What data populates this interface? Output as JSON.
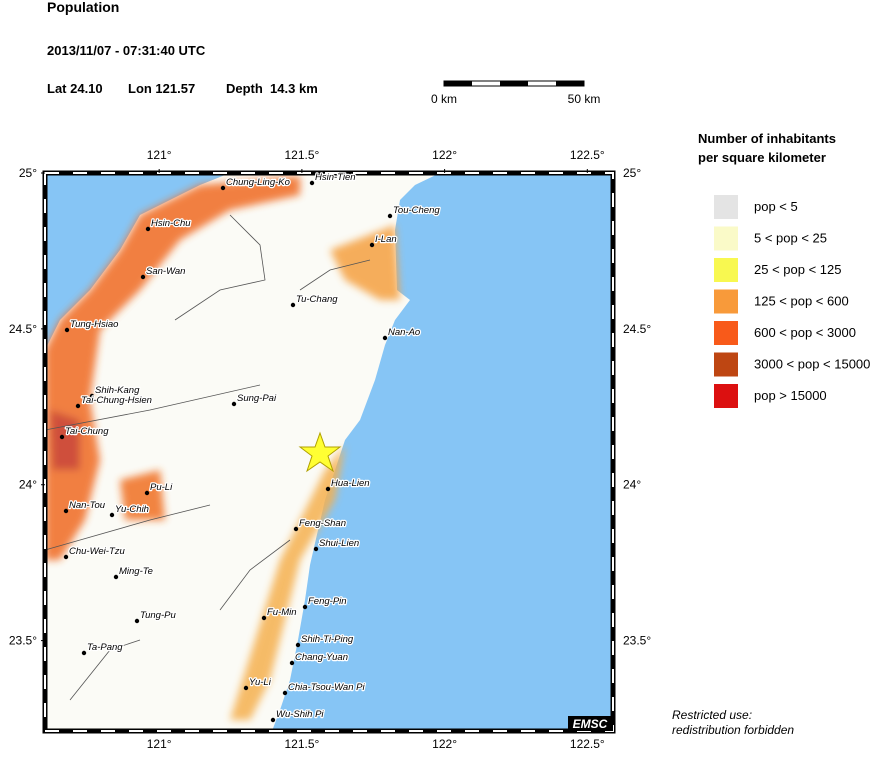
{
  "header": {
    "title": "Population",
    "datetime": "2013/11/07 - 07:31:40 UTC",
    "lat": "Lat 24.10",
    "lon": "Lon 121.57",
    "depth": "Depth  14.3 km"
  },
  "scale_bar": {
    "start": "0 km",
    "end": "50 km"
  },
  "map": {
    "xlim": [
      120.6,
      122.59
    ],
    "ylim": [
      23.21,
      25.0
    ],
    "xticks": [
      {
        "value": 121,
        "label": "121°"
      },
      {
        "value": 121.5,
        "label": "121.5°"
      },
      {
        "value": 122,
        "label": "122°"
      },
      {
        "value": 122.5,
        "label": "122.5°"
      }
    ],
    "yticks": [
      {
        "value": 25,
        "label": "25°"
      },
      {
        "value": 24.5,
        "label": "24.5°"
      },
      {
        "value": 24,
        "label": "24°"
      },
      {
        "value": 23.5,
        "label": "23.5°"
      }
    ],
    "cities": [
      "Chung-Ling-Ko",
      "Hsin-Tien",
      "Tou-Cheng",
      "Hsin-Chu",
      "I-Lan",
      "San-Wan",
      "Tu-Chang",
      "Tung-Hsiao",
      "Nan-Ao",
      "Shih-Kang",
      "Tai-Chung-Hsien",
      "Sung-Pai",
      "Tai-Chung",
      "Hua-Lien",
      "Pu-Li",
      "Nan-Tou",
      "Yu-Chih",
      "Feng-Shan",
      "Shui-Lien",
      "Chu-Wei-Tzu",
      "Ming-Te",
      "Feng-Pin",
      "Fu-Min",
      "Tung-Pu",
      "Shih-Ti-Ping",
      "Ta-Pang",
      "Chang-Yuan",
      "Yu-Li",
      "Chia-Tsou-Wan Pi",
      "Wu-Shih Pi"
    ],
    "credit": "EMSC"
  },
  "legend": {
    "title": [
      "Number of inhabitants",
      "per square kilometer"
    ],
    "items": [
      {
        "label": "pop < 5",
        "color": "#e4e4e4"
      },
      {
        "label": "5 < pop < 25",
        "color": "#fafac8"
      },
      {
        "label": "25 < pop < 125",
        "color": "#f8f850"
      },
      {
        "label": "125 < pop < 600",
        "color": "#f89a3a"
      },
      {
        "label": "600 < pop < 3000",
        "color": "#f85a1a"
      },
      {
        "label": "3000 < pop < 15000",
        "color": "#be4612"
      },
      {
        "label": "pop > 15000",
        "color": "#dc1010"
      }
    ]
  },
  "footer": [
    "Restricted use:",
    "redistribution forbidden"
  ]
}
